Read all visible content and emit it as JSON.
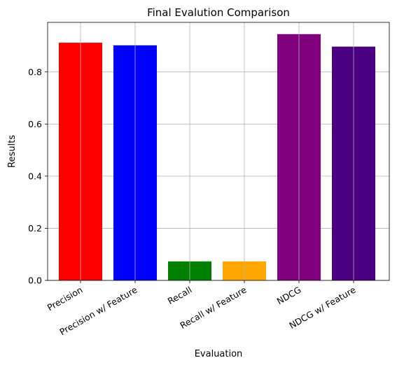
{
  "chart_data": {
    "type": "bar",
    "title": "Final Evalution Comparison",
    "xlabel": "Evaluation",
    "ylabel": "Results",
    "categories": [
      "Precision",
      "Precision w/ Feature",
      "Recall",
      "Recall w/ Feature",
      "NDCG",
      "NDCG w/ Feature"
    ],
    "values": [
      0.912,
      0.902,
      0.073,
      0.073,
      0.945,
      0.897
    ],
    "colors": [
      "#ff0000",
      "#0000ff",
      "#008000",
      "#ffa500",
      "#800080",
      "#4b0082"
    ],
    "ylim": [
      0,
      0.99
    ],
    "yticks": [
      0.0,
      0.2,
      0.4,
      0.6,
      0.8
    ],
    "ytick_labels": [
      "0.0",
      "0.2",
      "0.4",
      "0.6",
      "0.8"
    ],
    "grid": true
  }
}
